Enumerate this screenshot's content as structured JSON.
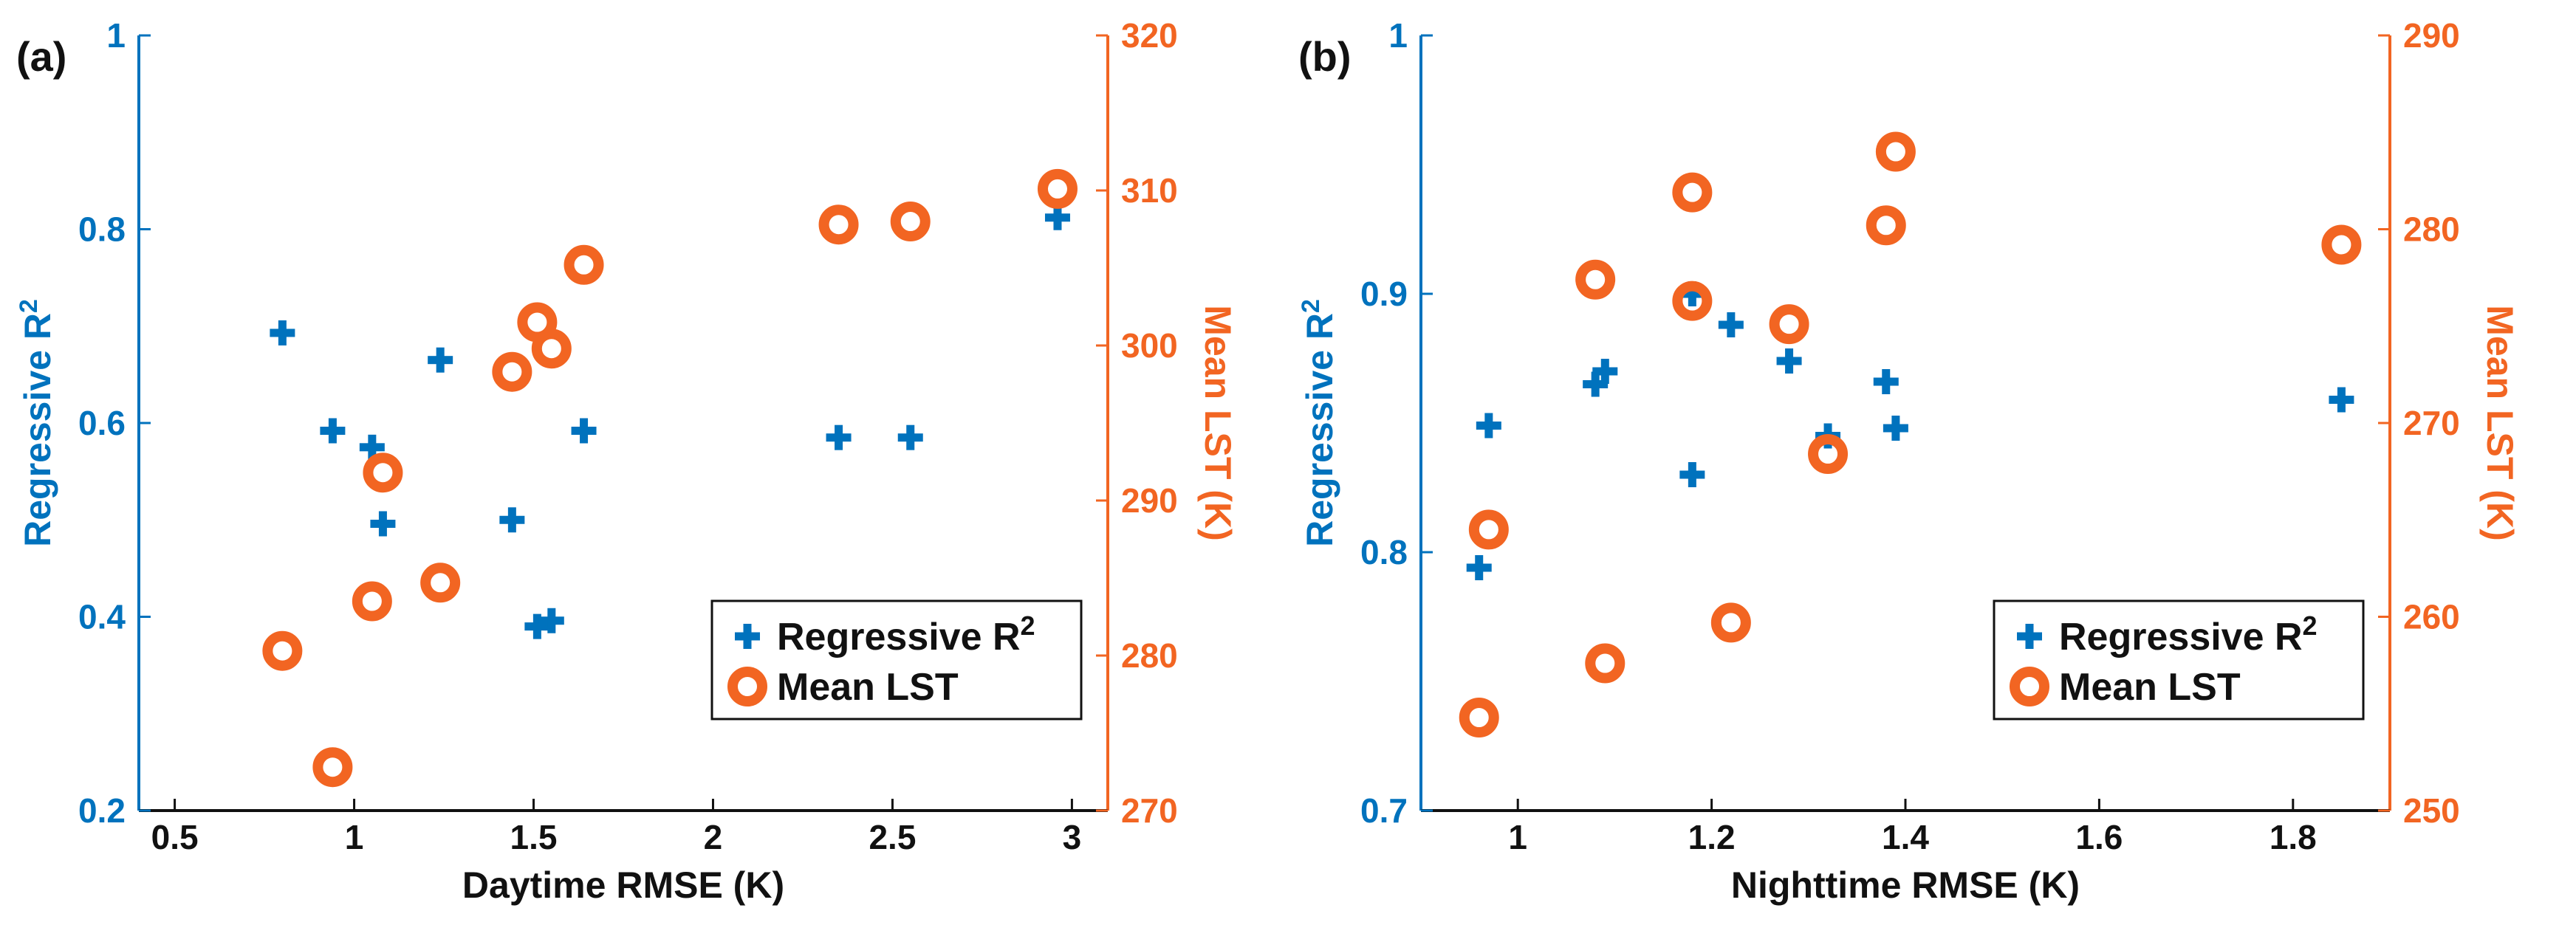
{
  "colors": {
    "r2": "#0072BD",
    "lst": "#F26522",
    "text": "#111111"
  },
  "chart_data": [
    {
      "type": "scatter",
      "panel_label": "(a)",
      "xlabel": "Daytime RMSE (K)",
      "ylabel_left": "Regressive R",
      "ylabel_left_sup": "2",
      "ylabel_right": "Mean LST (K)",
      "xlim": [
        0.4,
        3.1
      ],
      "ylim_left": [
        0.2,
        1.0
      ],
      "ylim_right": [
        270,
        320
      ],
      "xticks": [
        0.5,
        1,
        1.5,
        2,
        2.5,
        3
      ],
      "xtick_labels": [
        "0.5",
        "1",
        "1.5",
        "2",
        "2.5",
        "3"
      ],
      "yticks_left": [
        0.2,
        0.4,
        0.6,
        0.8,
        1
      ],
      "ytick_labels_left": [
        "0.2",
        "0.4",
        "0.6",
        "0.8",
        "1"
      ],
      "yticks_right": [
        270,
        280,
        290,
        300,
        310,
        320
      ],
      "ytick_labels_right": [
        "270",
        "280",
        "290",
        "300",
        "310",
        "320"
      ],
      "legend_position": "bottom-right",
      "series": [
        {
          "name": "Regressive R",
          "name_sup": "2",
          "axis": "left",
          "marker": "plus",
          "points": [
            [
              0.8,
              0.693
            ],
            [
              0.94,
              0.592
            ],
            [
              1.05,
              0.575
            ],
            [
              1.08,
              0.496
            ],
            [
              1.24,
              0.665
            ],
            [
              1.44,
              0.5
            ],
            [
              1.51,
              0.39
            ],
            [
              1.55,
              0.396
            ],
            [
              1.64,
              0.592
            ],
            [
              2.35,
              0.585
            ],
            [
              2.55,
              0.585
            ],
            [
              2.96,
              0.812
            ]
          ]
        },
        {
          "name": "Mean LST",
          "axis": "right",
          "marker": "ring",
          "points": [
            [
              0.8,
              280.3
            ],
            [
              0.94,
              272.8
            ],
            [
              1.05,
              283.5
            ],
            [
              1.08,
              291.8
            ],
            [
              1.24,
              284.7
            ],
            [
              1.44,
              298.3
            ],
            [
              1.51,
              301.5
            ],
            [
              1.55,
              299.8
            ],
            [
              1.64,
              305.2
            ],
            [
              2.35,
              307.8
            ],
            [
              2.55,
              308.0
            ],
            [
              2.96,
              310.1
            ]
          ]
        }
      ]
    },
    {
      "type": "scatter",
      "panel_label": "(b)",
      "xlabel": "Nighttime RMSE (K)",
      "ylabel_left": "Regressive R",
      "ylabel_left_sup": "2",
      "ylabel_right": "Mean LST (K)",
      "xlim": [
        0.9,
        1.9
      ],
      "ylim_left": [
        0.7,
        1.0
      ],
      "ylim_right": [
        250,
        290
      ],
      "xticks": [
        1,
        1.2,
        1.4,
        1.6,
        1.8
      ],
      "xtick_labels": [
        "1",
        "1.2",
        "1.4",
        "1.6",
        "1.8"
      ],
      "yticks_left": [
        0.7,
        0.8,
        0.9,
        1
      ],
      "ytick_labels_left": [
        "0.7",
        "0.8",
        "0.9",
        "1"
      ],
      "yticks_right": [
        250,
        260,
        270,
        280,
        290
      ],
      "ytick_labels_right": [
        "250",
        "260",
        "270",
        "280",
        "290"
      ],
      "legend_position": "bottom-right",
      "series": [
        {
          "name": "Regressive R",
          "name_sup": "2",
          "axis": "left",
          "marker": "plus",
          "points": [
            [
              0.96,
              0.794
            ],
            [
              0.97,
              0.849
            ],
            [
              1.08,
              0.865
            ],
            [
              1.09,
              0.87
            ],
            [
              1.18,
              0.83
            ],
            [
              1.18,
              0.9
            ],
            [
              1.22,
              0.888
            ],
            [
              1.28,
              0.874
            ],
            [
              1.32,
              0.845
            ],
            [
              1.38,
              0.866
            ],
            [
              1.39,
              0.848
            ],
            [
              1.85,
              0.859
            ]
          ]
        },
        {
          "name": "Mean LST",
          "axis": "right",
          "marker": "ring",
          "points": [
            [
              0.96,
              254.8
            ],
            [
              0.97,
              264.5
            ],
            [
              1.08,
              277.4
            ],
            [
              1.09,
              257.6
            ],
            [
              1.18,
              281.9
            ],
            [
              1.18,
              276.3
            ],
            [
              1.22,
              259.7
            ],
            [
              1.28,
              275.1
            ],
            [
              1.32,
              268.4
            ],
            [
              1.38,
              280.2
            ],
            [
              1.39,
              284.0
            ],
            [
              1.85,
              279.2
            ]
          ]
        }
      ]
    }
  ]
}
